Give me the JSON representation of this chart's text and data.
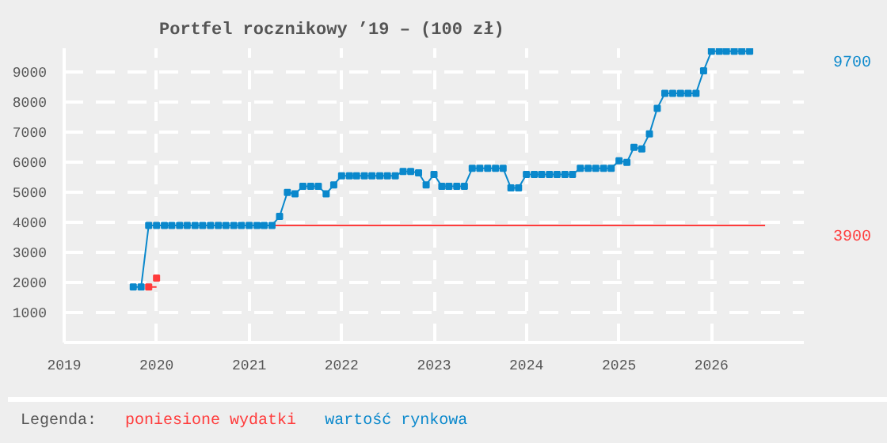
{
  "chart_data": {
    "type": "line",
    "title": "Portfel rocznikowy ’19 – (100 zł)",
    "legend_title": "Legenda:",
    "legend": "bottom",
    "grid": true,
    "line_style": "solid",
    "xlim": [
      "2019",
      "2027"
    ],
    "xticks": [
      "2019",
      "2020",
      "2021",
      "2022",
      "2023",
      "2024",
      "2025",
      "2026"
    ],
    "ylim": [
      0,
      9800
    ],
    "yticks": [
      1000,
      2000,
      3000,
      4000,
      5000,
      6000,
      7000,
      8000,
      9000
    ],
    "annotations": [
      "9700",
      "3900"
    ],
    "series": [
      {
        "name": "poniesione wydatki",
        "color": "#ff3b3b",
        "marker": "none",
        "x": [
          "2019-12",
          "2020-01"
        ],
        "values": [
          1850,
          1850
        ]
      },
      {
        "color": "#ff3b3b",
        "type": "scatter",
        "marker": "square",
        "x": [
          "2019-12",
          "2020-01"
        ],
        "values": [
          1850,
          2150
        ]
      },
      {
        "color": "#ff3b3b",
        "marker": "none",
        "x": [
          "2021-04",
          "2026-08"
        ],
        "values": [
          3900,
          3900
        ]
      },
      {
        "name": "wartość rynkowa",
        "color": "#0a88cc",
        "marker": "square",
        "x": [
          "2019-10",
          "2019-11",
          "2019-12",
          "2020-01",
          "2020-02",
          "2020-03",
          "2020-04",
          "2020-05",
          "2020-06",
          "2020-07",
          "2020-08",
          "2020-09",
          "2020-10",
          "2020-11",
          "2020-12",
          "2021-01",
          "2021-02",
          "2021-03",
          "2021-04",
          "2021-05",
          "2021-06",
          "2021-07",
          "2021-08",
          "2021-09",
          "2021-10",
          "2021-11",
          "2021-12",
          "2022-01",
          "2022-02",
          "2022-03",
          "2022-04",
          "2022-05",
          "2022-06",
          "2022-07",
          "2022-08",
          "2022-09",
          "2022-10",
          "2022-11",
          "2022-12",
          "2023-01",
          "2023-02",
          "2023-03",
          "2023-04",
          "2023-05",
          "2023-06",
          "2023-07",
          "2023-08",
          "2023-09",
          "2023-10",
          "2023-11",
          "2023-12",
          "2024-01",
          "2024-02",
          "2024-03",
          "2024-04",
          "2024-05",
          "2024-06",
          "2024-07",
          "2024-08",
          "2024-09",
          "2024-10",
          "2024-11",
          "2024-12",
          "2025-01",
          "2025-02",
          "2025-03",
          "2025-04",
          "2025-05",
          "2025-06",
          "2025-07",
          "2025-08",
          "2025-09",
          "2025-10",
          "2025-11",
          "2025-12",
          "2026-01",
          "2026-02",
          "2026-03",
          "2026-04",
          "2026-05",
          "2026-06"
        ],
        "values": [
          1850,
          1850,
          3900,
          3900,
          3900,
          3900,
          3900,
          3900,
          3900,
          3900,
          3900,
          3900,
          3900,
          3900,
          3900,
          3900,
          3900,
          3900,
          3900,
          4200,
          5000,
          4950,
          5200,
          5200,
          5200,
          4950,
          5250,
          5550,
          5550,
          5550,
          5550,
          5550,
          5550,
          5550,
          5550,
          5700,
          5700,
          5650,
          5250,
          5600,
          5200,
          5200,
          5200,
          5200,
          5800,
          5800,
          5800,
          5800,
          5800,
          5150,
          5150,
          5600,
          5600,
          5600,
          5600,
          5600,
          5600,
          5600,
          5800,
          5800,
          5800,
          5800,
          5800,
          6050,
          6000,
          6500,
          6450,
          6950,
          7800,
          8300,
          8300,
          8300,
          8300,
          8300,
          9050,
          9700,
          9700,
          9700,
          9700,
          9700,
          9700
        ]
      }
    ]
  }
}
